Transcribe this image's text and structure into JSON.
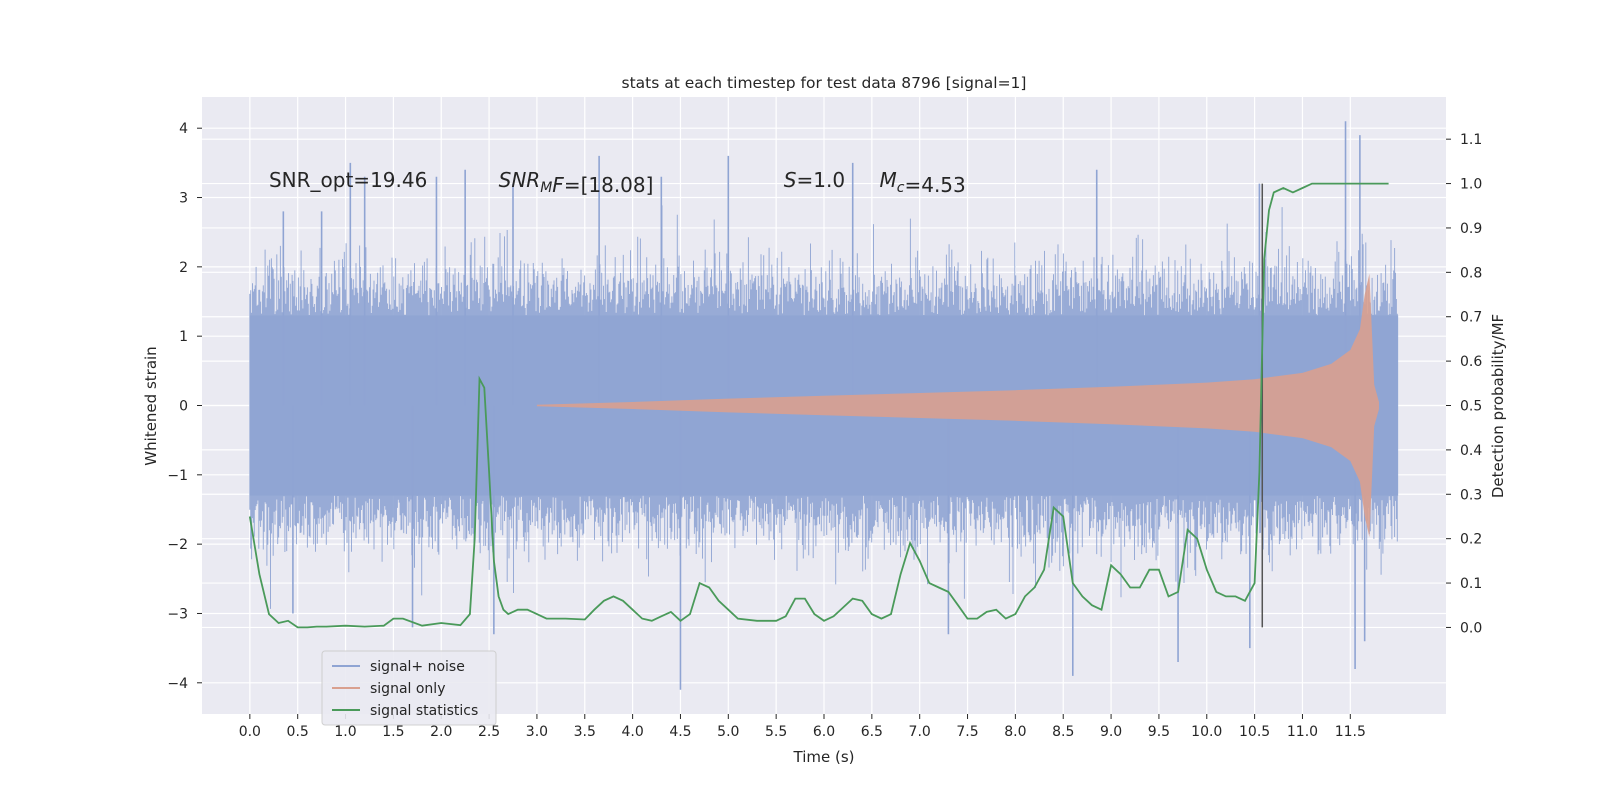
{
  "chart_data": {
    "type": "line",
    "title": "stats at each timestep for test data 8796 [signal=1]",
    "xlabel": "Time (s)",
    "ylabel_left": "Whitened strain",
    "ylabel_right": "Detection probability/MF",
    "xlim": [
      -0.5,
      12.5
    ],
    "ylim_left": [
      -4.45,
      4.45
    ],
    "ylim_right": [
      -0.195,
      1.195
    ],
    "x_ticks": [
      0.0,
      0.5,
      1.0,
      1.5,
      2.0,
      2.5,
      3.0,
      3.5,
      4.0,
      4.5,
      5.0,
      5.5,
      6.0,
      6.5,
      7.0,
      7.5,
      8.0,
      8.5,
      9.0,
      9.5,
      10.0,
      10.5,
      11.0,
      11.5
    ],
    "x_tick_labels": [
      "0.0",
      "0.5",
      "1.0",
      "1.5",
      "2.0",
      "2.5",
      "3.0",
      "3.5",
      "4.0",
      "4.5",
      "5.0",
      "5.5",
      "6.0",
      "6.5",
      "7.0",
      "7.5",
      "8.0",
      "8.5",
      "9.0",
      "9.5",
      "10.0",
      "10.5",
      "11.0",
      "11.5"
    ],
    "y_left_ticks": [
      -4,
      -3,
      -2,
      -1,
      0,
      1,
      2,
      3,
      4
    ],
    "y_left_tick_labels": [
      "−4",
      "−3",
      "−2",
      "−1",
      "0",
      "1",
      "2",
      "3",
      "4"
    ],
    "y_right_ticks": [
      0.0,
      0.1,
      0.2,
      0.3,
      0.4,
      0.5,
      0.6,
      0.7,
      0.8,
      0.9,
      1.0,
      1.1
    ],
    "y_right_tick_labels": [
      "0.0",
      "0.1",
      "0.2",
      "0.3",
      "0.4",
      "0.5",
      "0.6",
      "0.7",
      "0.8",
      "0.9",
      "1.0",
      "1.1"
    ],
    "grid": true,
    "legend_position": "lower-left",
    "annotations": [
      {
        "x": 0.2,
        "y": 3.25,
        "parts": [
          {
            "text": "SNR_opt=19.46"
          }
        ]
      },
      {
        "x": 2.6,
        "y": 3.25,
        "parts": [
          {
            "text": "SNR",
            "italic": true
          },
          {
            "text": "M",
            "italic": true,
            "sub": true
          },
          {
            "text": "F",
            "italic": true
          },
          {
            "text": "=[18.08]"
          }
        ]
      },
      {
        "x": 5.58,
        "y": 3.25,
        "parts": [
          {
            "text": "S",
            "italic": true
          },
          {
            "text": "=1.0"
          }
        ]
      },
      {
        "x": 6.58,
        "y": 3.25,
        "parts": [
          {
            "text": "M",
            "italic": true
          },
          {
            "text": "c",
            "italic": true,
            "sub": true
          },
          {
            "text": "=4.53"
          }
        ]
      }
    ],
    "vertical_marker": {
      "x": 10.58,
      "y": [
        -3.2,
        3.2
      ],
      "color": "#555555"
    },
    "series": [
      {
        "name": "signal+ noise",
        "axis": "left",
        "style": "noise-band",
        "color": "#8fa4d3",
        "x_range": [
          0.0,
          12.0
        ],
        "core_amplitude": 1.3,
        "typical_peak": 2.0,
        "spikes": [
          {
            "x": 0.35,
            "y": 2.8
          },
          {
            "x": 0.75,
            "y": 2.8
          },
          {
            "x": 1.05,
            "y": 3.5
          },
          {
            "x": 1.2,
            "y": 3.3
          },
          {
            "x": 1.95,
            "y": 3.3
          },
          {
            "x": 2.25,
            "y": 3.4
          },
          {
            "x": 2.75,
            "y": 3.2
          },
          {
            "x": 3.65,
            "y": 3.6
          },
          {
            "x": 4.3,
            "y": 3.3
          },
          {
            "x": 5.0,
            "y": 3.6
          },
          {
            "x": 6.3,
            "y": 3.5
          },
          {
            "x": 8.85,
            "y": 3.4
          },
          {
            "x": 10.55,
            "y": 3.2
          },
          {
            "x": 11.45,
            "y": 4.1
          },
          {
            "x": 11.6,
            "y": 3.9
          },
          {
            "x": 0.45,
            "y": -3.0
          },
          {
            "x": 1.7,
            "y": -3.2
          },
          {
            "x": 2.55,
            "y": -3.3
          },
          {
            "x": 4.5,
            "y": -4.1
          },
          {
            "x": 7.3,
            "y": -3.3
          },
          {
            "x": 8.6,
            "y": -3.9
          },
          {
            "x": 9.7,
            "y": -3.7
          },
          {
            "x": 10.45,
            "y": -3.5
          },
          {
            "x": 11.55,
            "y": -3.8
          },
          {
            "x": 11.65,
            "y": -3.4
          }
        ]
      },
      {
        "name": "signal only",
        "axis": "left",
        "style": "chirp-envelope",
        "color": "#d9a08f",
        "x": [
          3.0,
          4.0,
          5.0,
          6.0,
          7.0,
          8.0,
          9.0,
          10.0,
          10.5,
          11.0,
          11.3,
          11.5,
          11.6,
          11.65,
          11.7,
          11.75,
          11.8
        ],
        "amplitude": [
          0.01,
          0.05,
          0.1,
          0.14,
          0.18,
          0.22,
          0.27,
          0.33,
          0.38,
          0.47,
          0.6,
          0.8,
          1.1,
          1.6,
          1.9,
          0.3,
          0.05
        ]
      },
      {
        "name": "signal statistics",
        "axis": "right",
        "color": "#4a9a5a",
        "x": [
          0.0,
          0.1,
          0.2,
          0.3,
          0.4,
          0.5,
          0.6,
          0.7,
          0.8,
          1.0,
          1.2,
          1.4,
          1.5,
          1.6,
          1.8,
          2.0,
          2.2,
          2.3,
          2.35,
          2.4,
          2.45,
          2.5,
          2.55,
          2.6,
          2.65,
          2.7,
          2.8,
          2.9,
          3.0,
          3.1,
          3.3,
          3.5,
          3.6,
          3.7,
          3.8,
          3.9,
          4.0,
          4.1,
          4.2,
          4.3,
          4.4,
          4.5,
          4.6,
          4.7,
          4.8,
          4.9,
          5.0,
          5.1,
          5.3,
          5.5,
          5.6,
          5.7,
          5.8,
          5.9,
          6.0,
          6.1,
          6.2,
          6.3,
          6.4,
          6.5,
          6.6,
          6.7,
          6.8,
          6.9,
          7.0,
          7.1,
          7.2,
          7.3,
          7.4,
          7.5,
          7.6,
          7.7,
          7.8,
          7.9,
          8.0,
          8.1,
          8.2,
          8.3,
          8.4,
          8.5,
          8.6,
          8.7,
          8.8,
          8.9,
          9.0,
          9.1,
          9.2,
          9.3,
          9.4,
          9.5,
          9.6,
          9.7,
          9.8,
          9.9,
          10.0,
          10.1,
          10.2,
          10.3,
          10.4,
          10.5,
          10.55,
          10.6,
          10.65,
          10.7,
          10.8,
          10.9,
          11.0,
          11.1,
          11.3,
          11.5,
          11.7,
          11.9
        ],
        "values": [
          0.25,
          0.12,
          0.03,
          0.01,
          0.015,
          0.0,
          0.0,
          0.002,
          0.002,
          0.004,
          0.002,
          0.004,
          0.02,
          0.02,
          0.004,
          0.01,
          0.005,
          0.03,
          0.2,
          0.56,
          0.54,
          0.35,
          0.15,
          0.07,
          0.04,
          0.03,
          0.04,
          0.04,
          0.03,
          0.02,
          0.02,
          0.018,
          0.04,
          0.06,
          0.07,
          0.06,
          0.04,
          0.02,
          0.015,
          0.025,
          0.035,
          0.015,
          0.03,
          0.1,
          0.09,
          0.06,
          0.04,
          0.02,
          0.015,
          0.015,
          0.025,
          0.065,
          0.065,
          0.03,
          0.015,
          0.025,
          0.045,
          0.065,
          0.06,
          0.03,
          0.02,
          0.03,
          0.12,
          0.19,
          0.15,
          0.1,
          0.09,
          0.08,
          0.05,
          0.02,
          0.02,
          0.035,
          0.04,
          0.02,
          0.03,
          0.07,
          0.09,
          0.13,
          0.27,
          0.25,
          0.1,
          0.07,
          0.05,
          0.04,
          0.14,
          0.12,
          0.09,
          0.09,
          0.13,
          0.13,
          0.07,
          0.08,
          0.22,
          0.2,
          0.13,
          0.08,
          0.07,
          0.07,
          0.06,
          0.1,
          0.35,
          0.83,
          0.94,
          0.98,
          0.99,
          0.98,
          0.99,
          1.0,
          1.0,
          1.0,
          1.0,
          1.0
        ]
      }
    ]
  }
}
